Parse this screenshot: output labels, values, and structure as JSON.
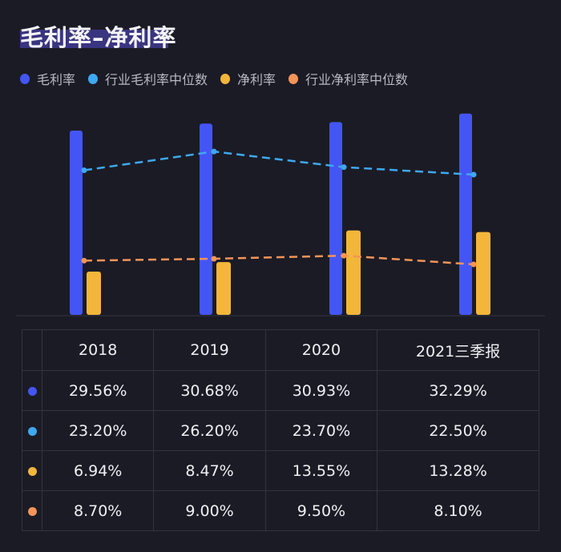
{
  "title": "毛利率–净利率",
  "chart_data": {
    "type": "bar+line",
    "title": "毛利率–净利率",
    "categories": [
      "2018",
      "2019",
      "2020",
      "2021三季报"
    ],
    "series": [
      {
        "name": "毛利率",
        "kind": "bar",
        "color": "#4455f5",
        "values": [
          29.56,
          30.68,
          30.93,
          32.29
        ]
      },
      {
        "name": "行业毛利率中位数",
        "kind": "dashed-line",
        "color": "#3ea8f0",
        "values": [
          23.2,
          26.2,
          23.7,
          22.5
        ]
      },
      {
        "name": "净利率",
        "kind": "bar",
        "color": "#f3b63a",
        "values": [
          6.94,
          8.47,
          13.55,
          13.28
        ]
      },
      {
        "name": "行业净利率中位数",
        "kind": "dashed-line",
        "color": "#f39458",
        "values": [
          8.7,
          9.0,
          9.5,
          8.1
        ]
      }
    ],
    "ylim": [
      0,
      33
    ],
    "grid": false,
    "legend": "top-left",
    "unit": "%"
  },
  "table": {
    "headers": [
      "2018",
      "2019",
      "2020",
      "2021三季报"
    ],
    "rows": [
      {
        "color": "#4455f5",
        "cells": [
          "29.56%",
          "30.68%",
          "30.93%",
          "32.29%"
        ]
      },
      {
        "color": "#3ea8f0",
        "cells": [
          "23.20%",
          "26.20%",
          "23.70%",
          "22.50%"
        ]
      },
      {
        "color": "#f3b63a",
        "cells": [
          "6.94%",
          "8.47%",
          "13.55%",
          "13.28%"
        ]
      },
      {
        "color": "#f39458",
        "cells": [
          "8.70%",
          "9.00%",
          "9.50%",
          "8.10%"
        ]
      }
    ]
  }
}
